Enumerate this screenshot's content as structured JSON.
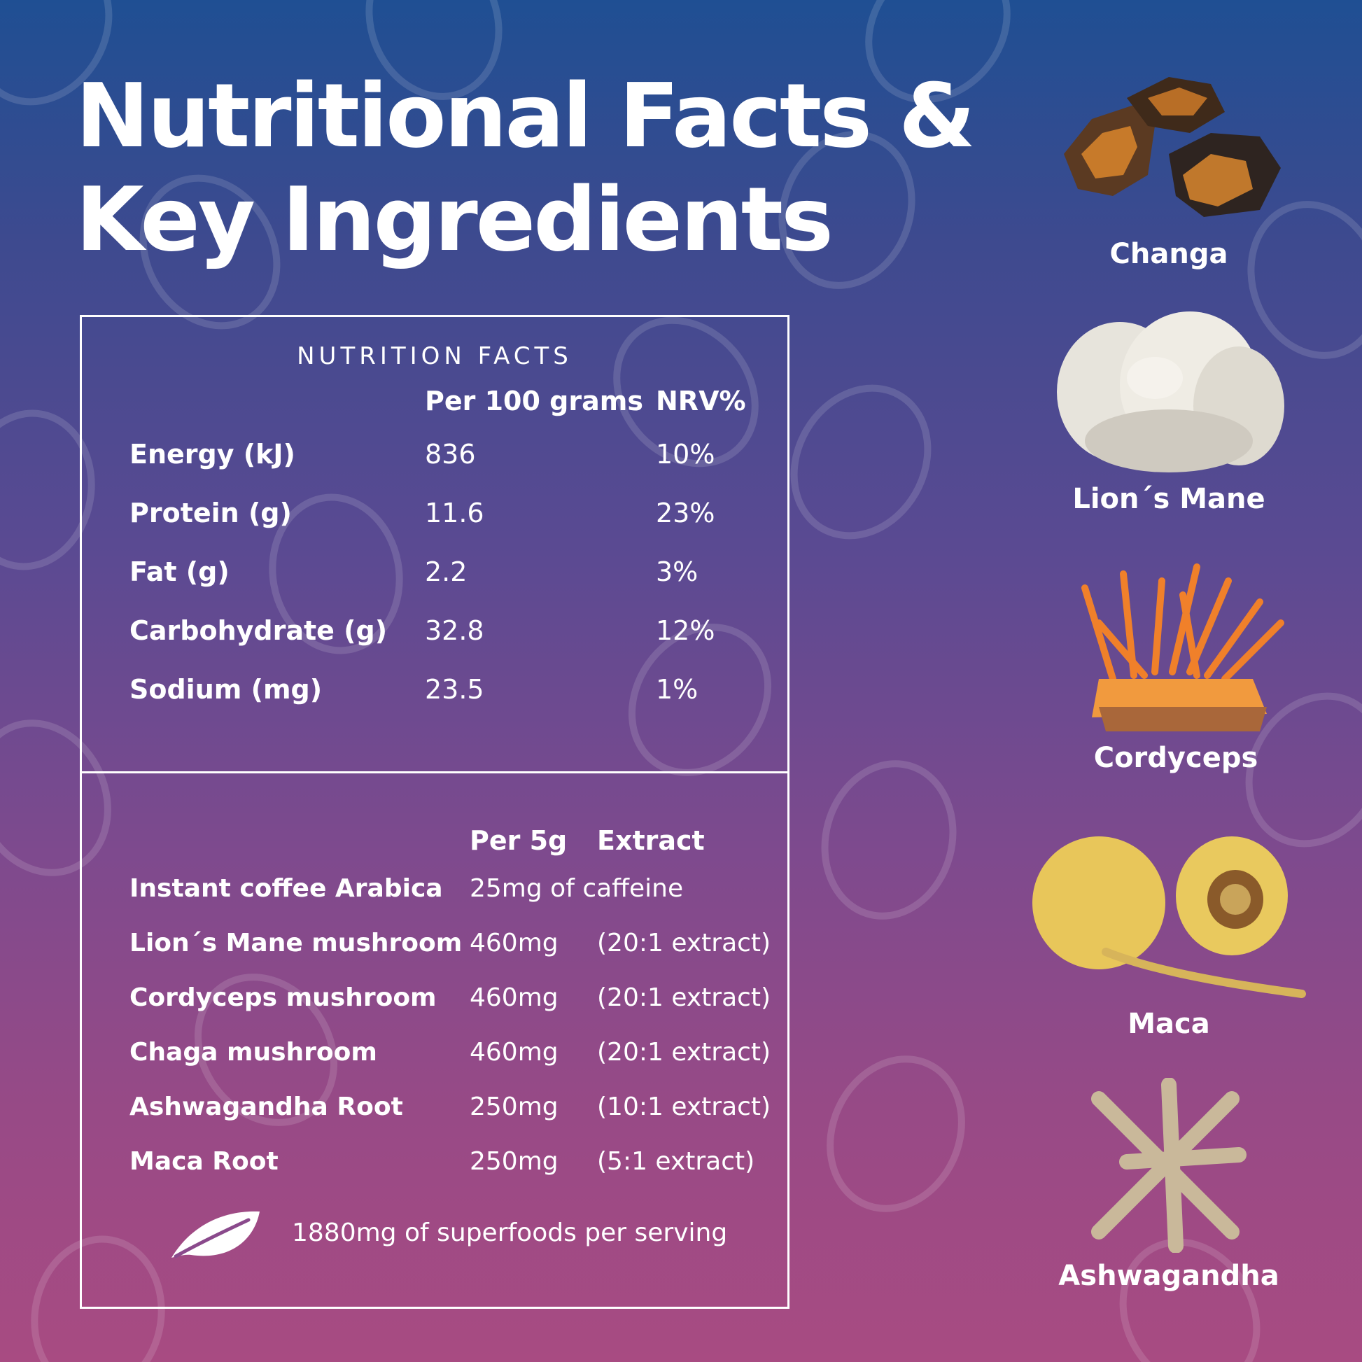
{
  "title": {
    "line1": "Nutritional Facts &",
    "line2": "Key Ingredients"
  },
  "nutrition": {
    "heading": "NUTRITION FACTS",
    "col_per": "Per 100 grams",
    "col_nrv": "NRV%",
    "rows": [
      {
        "label": "Energy (kJ)",
        "value": "836",
        "nrv": "10%"
      },
      {
        "label": "Protein (g)",
        "value": "11.6",
        "nrv": "23%"
      },
      {
        "label": "Fat (g)",
        "value": "2.2",
        "nrv": "3%"
      },
      {
        "label": "Carbohydrate (g)",
        "value": "32.8",
        "nrv": "12%"
      },
      {
        "label": "Sodium (mg)",
        "value": "23.5",
        "nrv": "1%"
      }
    ]
  },
  "ingredients_table": {
    "col_per": "Per 5g",
    "col_extract": "Extract",
    "caffeine_row": {
      "label": "Instant coffee Arabica",
      "value": "25mg of caffeine"
    },
    "rows": [
      {
        "label": "Lion´s Mane mushroom",
        "amount": "460mg",
        "extract": "(20:1 extract)"
      },
      {
        "label": "Cordyceps mushroom",
        "amount": "460mg",
        "extract": "(20:1 extract)"
      },
      {
        "label": "Chaga  mushroom",
        "amount": "460mg",
        "extract": "(20:1 extract)"
      },
      {
        "label": "Ashwagandha Root",
        "amount": "250mg",
        "extract": "(10:1 extract)"
      },
      {
        "label": "Maca Root",
        "amount": "250mg",
        "extract": "(5:1 extract)"
      }
    ],
    "footnote": "1880mg of superfoods per serving"
  },
  "ingredients": [
    {
      "label": "Changa",
      "icon": "chaga-chunks-image"
    },
    {
      "label": "Lion´s Mane",
      "icon": "lions-mane-image"
    },
    {
      "label": "Cordyceps",
      "icon": "cordyceps-image"
    },
    {
      "label": "Maca",
      "icon": "maca-root-image"
    },
    {
      "label": "Ashwagandha",
      "icon": "ashwagandha-root-image"
    }
  ],
  "colors": {
    "gradient_top": "#1f4f93",
    "gradient_bottom": "#a84b82",
    "text": "#ffffff"
  }
}
